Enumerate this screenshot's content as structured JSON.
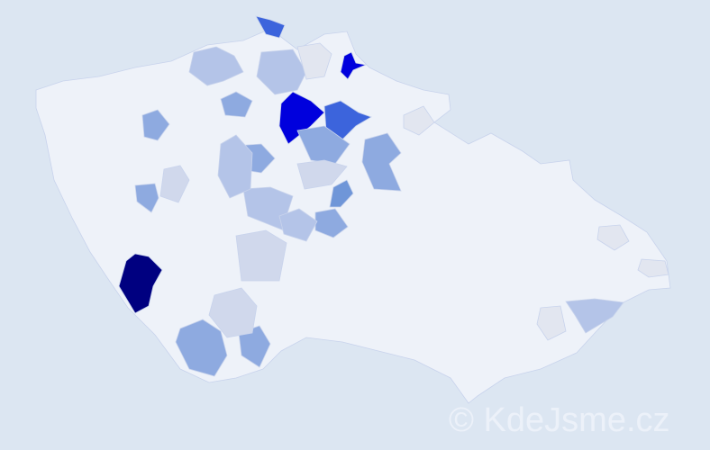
{
  "map": {
    "background": "#dce6f2",
    "base_fill": "#eef2f9",
    "border_color": "#c8d3ec",
    "palette": {
      "darkest": "#000080",
      "strong": "#0000dd",
      "medium_strong": "#3c64dc",
      "medium": "#6f96d8",
      "light_medium": "#8eaae0",
      "light": "#b4c4e8",
      "pale": "#d0d8ec",
      "very_pale": "#e2e6f0"
    }
  },
  "watermark": "© KdeJsme.cz"
}
